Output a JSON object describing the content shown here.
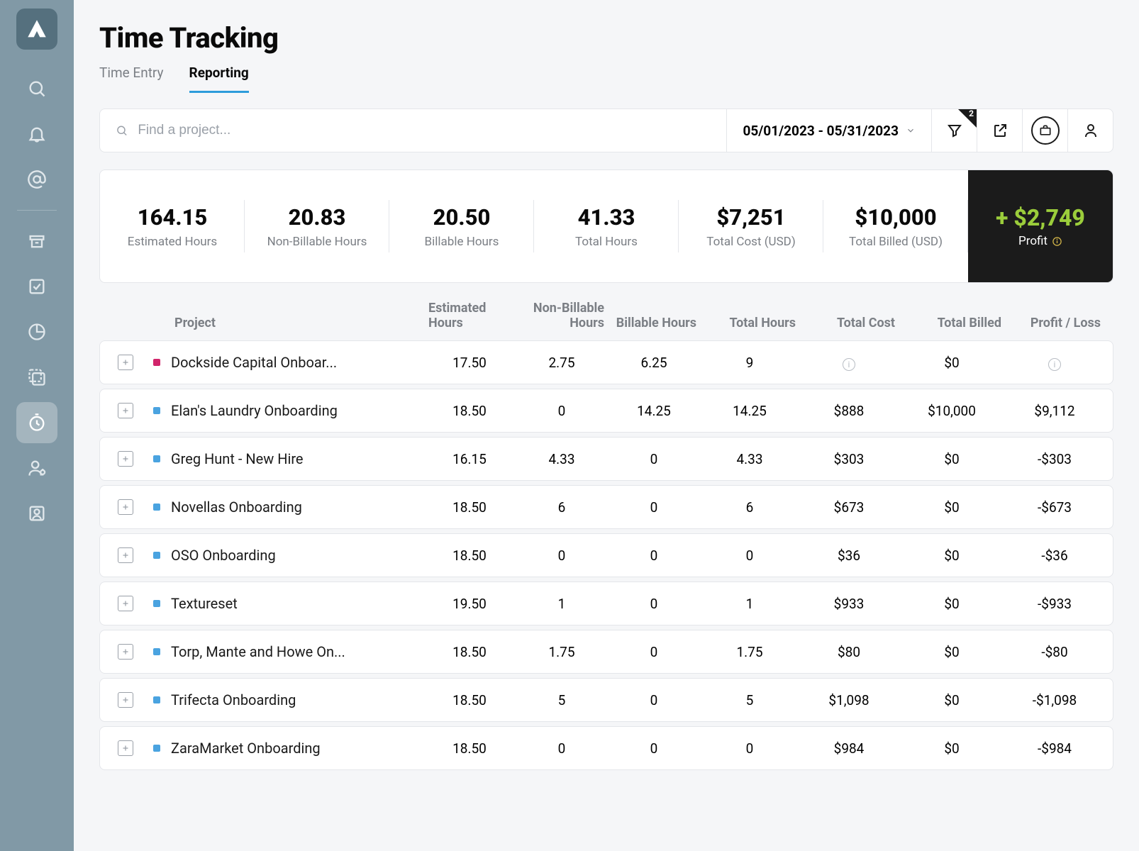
{
  "page": {
    "title": "Time Tracking"
  },
  "tabs": [
    {
      "label": "Time Entry",
      "active": false
    },
    {
      "label": "Reporting",
      "active": true
    }
  ],
  "toolbar": {
    "search_placeholder": "Find a project...",
    "date_range": "05/01/2023 - 05/31/2023",
    "filter_count": "2"
  },
  "summary": [
    {
      "value": "164.15",
      "label": "Estimated Hours"
    },
    {
      "value": "20.83",
      "label": "Non-Billable Hours"
    },
    {
      "value": "20.50",
      "label": "Billable Hours"
    },
    {
      "value": "41.33",
      "label": "Total Hours"
    },
    {
      "value": "$7,251",
      "label": "Total Cost (USD)"
    },
    {
      "value": "$10,000",
      "label": "Total Billed (USD)"
    }
  ],
  "profit": {
    "value": "+ $2,749",
    "label": "Profit",
    "value_color": "#9bcd3b",
    "bg_color": "#1b1b1b"
  },
  "columns": [
    "Project",
    "Estimated Hours",
    "Non-Billable Hours",
    "Billable Hours",
    "Total Hours",
    "Total Cost",
    "Total Billed",
    "Profit / Loss"
  ],
  "rows": [
    {
      "color": "#d1256b",
      "name": "Dockside Capital Onboar...",
      "est": "17.50",
      "nb": "2.75",
      "b": "6.25",
      "total": "9",
      "cost": "ⓘ",
      "billed": "$0",
      "pl": "ⓘ"
    },
    {
      "color": "#4aa3e0",
      "name": "Elan's Laundry Onboarding",
      "est": "18.50",
      "nb": "0",
      "b": "14.25",
      "total": "14.25",
      "cost": "$888",
      "billed": "$10,000",
      "pl": "$9,112"
    },
    {
      "color": "#4aa3e0",
      "name": "Greg Hunt - New Hire",
      "est": "16.15",
      "nb": "4.33",
      "b": "0",
      "total": "4.33",
      "cost": "$303",
      "billed": "$0",
      "pl": "-$303"
    },
    {
      "color": "#4aa3e0",
      "name": "Novellas Onboarding",
      "est": "18.50",
      "nb": "6",
      "b": "0",
      "total": "6",
      "cost": "$673",
      "billed": "$0",
      "pl": "-$673"
    },
    {
      "color": "#4aa3e0",
      "name": "OSO Onboarding",
      "est": "18.50",
      "nb": "0",
      "b": "0",
      "total": "0",
      "cost": "$36",
      "billed": "$0",
      "pl": "-$36"
    },
    {
      "color": "#4aa3e0",
      "name": "Textureset",
      "est": "19.50",
      "nb": "1",
      "b": "0",
      "total": "1",
      "cost": "$933",
      "billed": "$0",
      "pl": "-$933"
    },
    {
      "color": "#4aa3e0",
      "name": "Torp, Mante and Howe On...",
      "est": "18.50",
      "nb": "1.75",
      "b": "0",
      "total": "1.75",
      "cost": "$80",
      "billed": "$0",
      "pl": "-$80"
    },
    {
      "color": "#4aa3e0",
      "name": "Trifecta Onboarding",
      "est": "18.50",
      "nb": "5",
      "b": "0",
      "total": "5",
      "cost": "$1,098",
      "billed": "$0",
      "pl": "-$1,098"
    },
    {
      "color": "#4aa3e0",
      "name": "ZaraMarket Onboarding",
      "est": "18.50",
      "nb": "0",
      "b": "0",
      "total": "0",
      "cost": "$984",
      "billed": "$0",
      "pl": "-$984"
    }
  ],
  "colors": {
    "sidebar_bg": "#8199a6",
    "page_bg": "#f5f6f8",
    "text_primary": "#0a0a0a",
    "text_muted": "#7b7f85",
    "border": "#e4e6ea",
    "active_tab_border": "#2d9cdb"
  }
}
